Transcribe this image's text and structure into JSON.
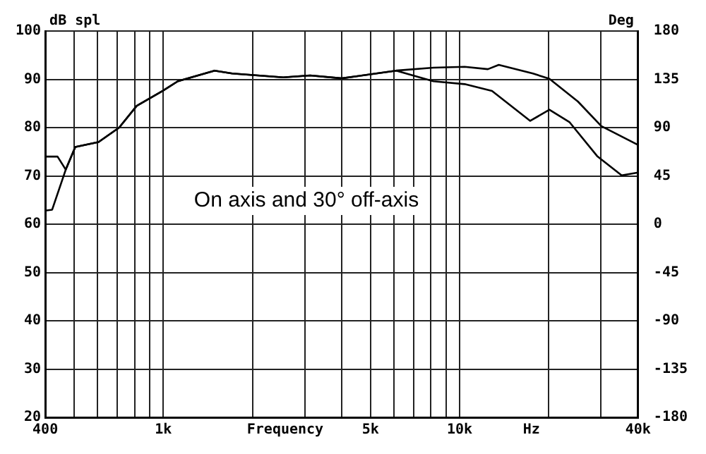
{
  "chart_data": {
    "type": "line",
    "xlabel": "Frequency",
    "ylabel": "dB spl",
    "y2label": "Deg",
    "annotations": [
      "On axis and 30° off-axis",
      "Hz"
    ],
    "log": "x",
    "grid": true,
    "legend": false,
    "marker": "none",
    "line_style": "solid",
    "xlim": [
      400,
      40000
    ],
    "xticks": [
      {
        "value": 400,
        "label": "400"
      },
      {
        "value": 500,
        "label": null
      },
      {
        "value": 600,
        "label": null
      },
      {
        "value": 700,
        "label": null
      },
      {
        "value": 800,
        "label": null
      },
      {
        "value": 900,
        "label": null
      },
      {
        "value": 1000,
        "label": "1k"
      },
      {
        "value": 2000,
        "label": null
      },
      {
        "value": 3000,
        "label": null
      },
      {
        "value": 4000,
        "label": null
      },
      {
        "value": 5000,
        "label": "5k"
      },
      {
        "value": 6000,
        "label": null
      },
      {
        "value": 7000,
        "label": null
      },
      {
        "value": 8000,
        "label": null
      },
      {
        "value": 9000,
        "label": null
      },
      {
        "value": 10000,
        "label": "10k"
      },
      {
        "value": 20000,
        "label": null
      },
      {
        "value": 30000,
        "label": null
      },
      {
        "value": 40000,
        "label": "40k"
      }
    ],
    "ylim": [
      20,
      100
    ],
    "yticks": [
      20,
      30,
      40,
      50,
      60,
      70,
      80,
      90,
      100
    ],
    "y2lim": [
      -180,
      180
    ],
    "y2ticks": [
      -180,
      -135,
      -90,
      -45,
      0,
      45,
      90,
      135,
      180
    ],
    "series": [
      {
        "color": "#000000",
        "x": [
          400,
          440,
          469,
          505,
          605,
          710,
          814,
          996,
          1120,
          1490,
          1710,
          2540,
          3130,
          4000,
          6110,
          8150,
          10400,
          12450,
          13550,
          17670,
          20080,
          25060,
          30050,
          40000
        ],
        "values": [
          74,
          74,
          71.3,
          76,
          77,
          80,
          84.5,
          87.6,
          89.6,
          91.8,
          91.2,
          90.4,
          90.8,
          90.2,
          91.8,
          92.4,
          92.6,
          92.1,
          93,
          91.2,
          90.1,
          85.4,
          80.3,
          76.4
        ]
      },
      {
        "color": "#000000",
        "x": [
          400,
          422,
          469,
          505,
          605,
          710,
          814,
          996,
          1120,
          1490,
          1710,
          2540,
          3130,
          4000,
          6110,
          8150,
          10400,
          12860,
          17300,
          20080,
          23500,
          29100,
          35200,
          40000
        ],
        "values": [
          62.8,
          63,
          71.3,
          76,
          77,
          80,
          84.5,
          87.6,
          89.6,
          91.8,
          91.2,
          90.4,
          90.8,
          90.2,
          91.8,
          89.6,
          89,
          87.6,
          81.4,
          83.7,
          81.1,
          74.1,
          70.1,
          70.7
        ]
      }
    ]
  }
}
